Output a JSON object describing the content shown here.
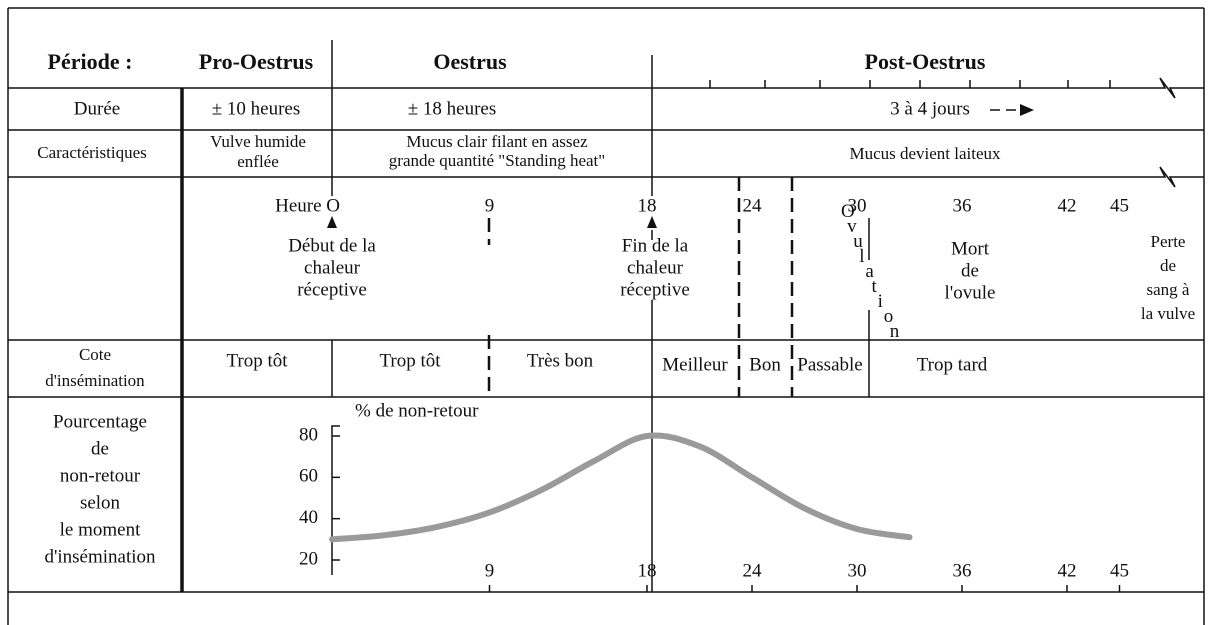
{
  "header": {
    "label": "Période :",
    "phases": [
      "Pro-Oestrus",
      "Oestrus",
      "Post-Oestrus"
    ]
  },
  "duration": {
    "label": "Durée",
    "values": [
      "± 10 heures",
      "± 18 heures",
      "3 à 4 jours"
    ]
  },
  "characteristics": {
    "label": "Caractéristiques",
    "values": [
      [
        "Vulve humide",
        "enflée"
      ],
      [
        "Mucus clair filant en assez",
        "grande quantité \"Standing heat\""
      ],
      [
        "Mucus devient laiteux"
      ]
    ]
  },
  "hours": {
    "start": "Heure O",
    "marks": [
      9,
      18,
      24,
      30,
      36,
      42,
      45
    ]
  },
  "events": [
    [
      "Début de la",
      "chaleur",
      "réceptive"
    ],
    [
      "Fin de la",
      "chaleur",
      "réceptive"
    ],
    [
      "Mort",
      "de",
      "l'ovule"
    ],
    [
      "Perte",
      "de",
      "sang à",
      "la vulve"
    ]
  ],
  "ovulation": "Ovulation",
  "rating": {
    "label": [
      "Cote",
      "d'insémination"
    ],
    "values": [
      "Trop tôt",
      "Trop tôt",
      "Très bon",
      "Meilleur",
      "Bon",
      "Passable",
      "Trop tard"
    ]
  },
  "chart_data": {
    "type": "line",
    "label": [
      "Pourcentage",
      "de",
      "non-retour",
      "selon",
      "le moment",
      "d'insémination"
    ],
    "y_label": "% de non-retour",
    "ylim": [
      20,
      80
    ],
    "yticks": [
      20,
      40,
      60,
      80
    ],
    "xticks": [
      9,
      18,
      24,
      30,
      36,
      42,
      45
    ],
    "x": [
      0,
      3,
      6,
      9,
      12,
      15,
      18,
      21,
      24,
      27,
      30,
      33
    ],
    "values": [
      30,
      32,
      36,
      43,
      54,
      68,
      80,
      75,
      60,
      45,
      35,
      31
    ],
    "color": "#9a9a9a"
  }
}
